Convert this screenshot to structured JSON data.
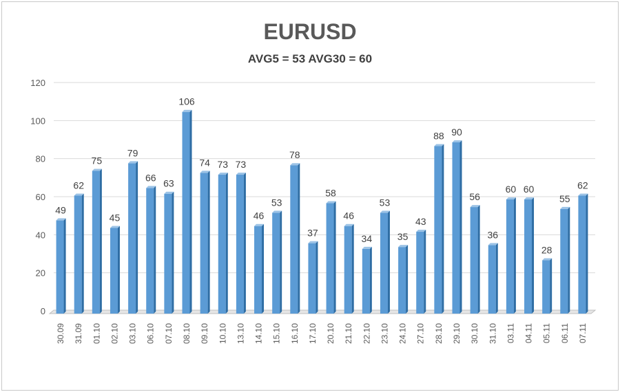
{
  "chart_data": {
    "type": "bar",
    "title": "EURUSD",
    "subtitle": "AVG5 = 53 AVG30 = 60",
    "xlabel": "",
    "ylabel": "",
    "ylim": [
      0,
      120
    ],
    "yticks": [
      0,
      20,
      40,
      60,
      80,
      100,
      120
    ],
    "grid": true,
    "legend": "none",
    "categories": [
      "30.09",
      "31.09",
      "01.10",
      "02.10",
      "03.10",
      "06.10",
      "07.10",
      "08.10",
      "09.10",
      "10.10",
      "13.10",
      "14.10",
      "15.10",
      "16.10",
      "17.10",
      "20.10",
      "21.10",
      "22.10",
      "23.10",
      "24.10",
      "27.10",
      "28.10",
      "29.10",
      "30.10",
      "31.10",
      "03.11",
      "04.11",
      "05.11",
      "06.11",
      "07.11"
    ],
    "values": [
      49,
      62,
      75,
      45,
      79,
      66,
      63,
      106,
      74,
      73,
      73,
      46,
      53,
      78,
      37,
      58,
      46,
      34,
      53,
      35,
      43,
      88,
      90,
      56,
      36,
      60,
      60,
      28,
      55,
      62
    ],
    "colors": {
      "bar": "#5b9bd5",
      "bar_side": "#2e6da4",
      "grid": "#d9d9d9",
      "text": "#404040"
    }
  }
}
